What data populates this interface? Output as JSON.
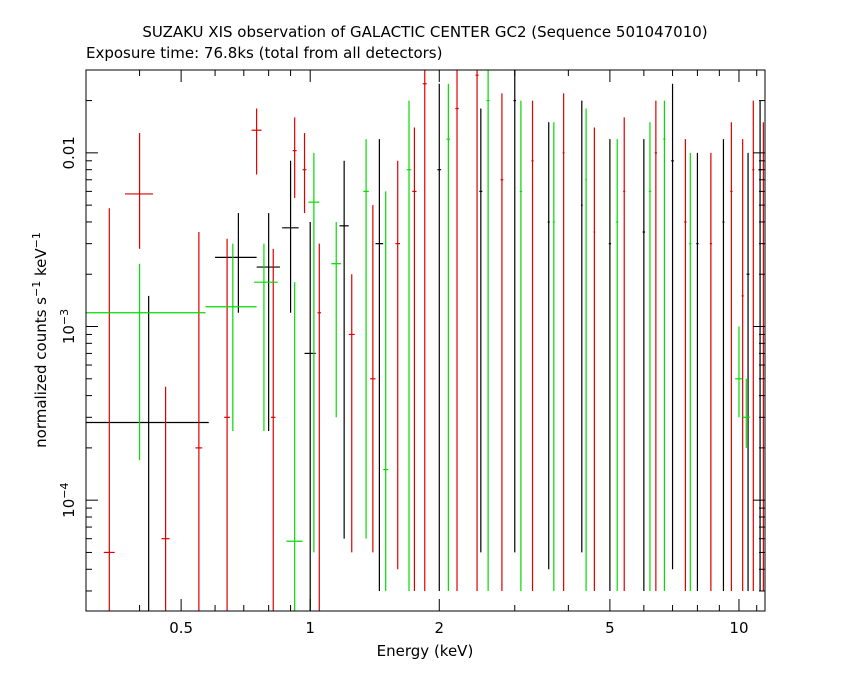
{
  "chart_data": {
    "type": "scatter",
    "title": "SUZAKU XIS observation of GALACTIC CENTER GC2 (Sequence 501047010)",
    "subtitle": "Exposure time: 76.8ks (total from all detectors)",
    "xlabel": "Energy (keV)",
    "ylabel_main": "normalized counts s",
    "ylabel_exp1": "−1",
    "ylabel_mid": " keV",
    "ylabel_exp2": "−1",
    "x_scale": "log",
    "y_scale": "log",
    "xlim": [
      0.3,
      11.5
    ],
    "ylim": [
      2.3e-05,
      0.03
    ],
    "x_ticks": [
      {
        "value": 0.5,
        "label": "0.5"
      },
      {
        "value": 1,
        "label": "1"
      },
      {
        "value": 2,
        "label": "2"
      },
      {
        "value": 5,
        "label": "5"
      },
      {
        "value": 10,
        "label": "10"
      }
    ],
    "y_ticks": [
      {
        "value": 0.0001,
        "base": "10",
        "exp": "−4"
      },
      {
        "value": 0.001,
        "base": "10",
        "exp": "−3"
      },
      {
        "value": 0.01,
        "label": "0.01"
      }
    ],
    "grid": false,
    "legend": "none",
    "series": [
      {
        "color": "#000000",
        "points": [
          {
            "x": 0.42,
            "xlo": 0.3,
            "xhi": 0.58,
            "y": 0.00028,
            "ylo": 2.3e-05,
            "yhi": 0.0015
          },
          {
            "x": 0.68,
            "xlo": 0.6,
            "xhi": 0.75,
            "y": 0.0025,
            "ylo": 0.0012,
            "yhi": 0.0045
          },
          {
            "x": 0.8,
            "xlo": 0.75,
            "xhi": 0.85,
            "y": 0.0022,
            "ylo": 0.00025,
            "yhi": 0.0045
          },
          {
            "x": 0.9,
            "xlo": 0.86,
            "xhi": 0.94,
            "y": 0.0037,
            "ylo": 0.0012,
            "yhi": 0.009
          },
          {
            "x": 1.0,
            "xlo": 0.97,
            "xhi": 1.03,
            "y": 0.0007,
            "ylo": 2.3e-05,
            "yhi": 0.004
          },
          {
            "x": 1.2,
            "xlo": 1.17,
            "xhi": 1.23,
            "y": 0.0038,
            "ylo": 6e-05,
            "yhi": 0.009
          },
          {
            "x": 1.45,
            "xlo": 1.42,
            "xhi": 1.48,
            "y": 0.003,
            "ylo": 3e-05,
            "yhi": 0.012
          },
          {
            "x": 2.0,
            "xlo": 1.98,
            "xhi": 2.02,
            "y": 0.008,
            "ylo": 3e-05,
            "yhi": 0.025
          },
          {
            "x": 2.5,
            "xlo": 2.48,
            "xhi": 2.52,
            "y": 0.006,
            "ylo": 5e-05,
            "yhi": 0.018
          },
          {
            "x": 3.0,
            "xlo": 2.98,
            "xhi": 3.02,
            "y": 0.02,
            "ylo": 5e-05,
            "yhi": 0.03
          },
          {
            "x": 3.6,
            "xlo": 3.58,
            "xhi": 3.62,
            "y": 0.004,
            "ylo": 4e-05,
            "yhi": 0.015
          },
          {
            "x": 4.3,
            "xlo": 4.28,
            "xhi": 4.32,
            "y": 0.005,
            "ylo": 5e-05,
            "yhi": 0.02
          },
          {
            "x": 5.0,
            "xlo": 4.97,
            "xhi": 5.03,
            "y": 0.003,
            "ylo": 3e-05,
            "yhi": 0.012
          },
          {
            "x": 6.0,
            "xlo": 5.96,
            "xhi": 6.04,
            "y": 0.0035,
            "ylo": 3e-05,
            "yhi": 0.012
          },
          {
            "x": 7.0,
            "xlo": 6.95,
            "xhi": 7.05,
            "y": 0.009,
            "ylo": 4e-05,
            "yhi": 0.025
          },
          {
            "x": 8.0,
            "xlo": 7.95,
            "xhi": 8.05,
            "y": 0.003,
            "ylo": 3e-05,
            "yhi": 0.01
          },
          {
            "x": 9.2,
            "xlo": 9.15,
            "xhi": 9.25,
            "y": 0.004,
            "ylo": 3e-05,
            "yhi": 0.012
          },
          {
            "x": 10.5,
            "xlo": 10.42,
            "xhi": 10.58,
            "y": 0.002,
            "ylo": 3e-05,
            "yhi": 0.01
          },
          {
            "x": 11.2,
            "xlo": 11.1,
            "xhi": 11.3,
            "y": 0.008,
            "ylo": 3e-05,
            "yhi": 0.02
          }
        ]
      },
      {
        "color": "#dd0000",
        "points": [
          {
            "x": 0.34,
            "xlo": 0.33,
            "xhi": 0.35,
            "y": 5e-05,
            "ylo": 2.3e-05,
            "yhi": 0.0048
          },
          {
            "x": 0.4,
            "xlo": 0.37,
            "xhi": 0.43,
            "y": 0.0058,
            "ylo": 0.0028,
            "yhi": 0.013
          },
          {
            "x": 0.46,
            "xlo": 0.45,
            "xhi": 0.47,
            "y": 6e-05,
            "ylo": 2.3e-05,
            "yhi": 0.00045
          },
          {
            "x": 0.55,
            "xlo": 0.54,
            "xhi": 0.56,
            "y": 0.0002,
            "ylo": 2.3e-05,
            "yhi": 0.0035
          },
          {
            "x": 0.64,
            "xlo": 0.63,
            "xhi": 0.65,
            "y": 0.0003,
            "ylo": 2.3e-05,
            "yhi": 0.0032
          },
          {
            "x": 0.75,
            "xlo": 0.73,
            "xhi": 0.77,
            "y": 0.0135,
            "ylo": 0.0075,
            "yhi": 0.018
          },
          {
            "x": 0.82,
            "xlo": 0.81,
            "xhi": 0.83,
            "y": 0.0003,
            "ylo": 2.3e-05,
            "yhi": 0.0028
          },
          {
            "x": 0.92,
            "xlo": 0.91,
            "xhi": 0.93,
            "y": 0.0103,
            "ylo": 0.0055,
            "yhi": 0.016
          },
          {
            "x": 0.97,
            "xlo": 0.96,
            "xhi": 0.98,
            "y": 0.008,
            "ylo": 0.0045,
            "yhi": 0.013
          },
          {
            "x": 1.05,
            "xlo": 1.04,
            "xhi": 1.06,
            "y": 0.0012,
            "ylo": 2.3e-05,
            "yhi": 0.003
          },
          {
            "x": 1.25,
            "xlo": 1.23,
            "xhi": 1.27,
            "y": 0.0009,
            "ylo": 5e-05,
            "yhi": 0.002
          },
          {
            "x": 1.4,
            "xlo": 1.38,
            "xhi": 1.42,
            "y": 0.0005,
            "ylo": 5e-05,
            "yhi": 0.005
          },
          {
            "x": 1.6,
            "xlo": 1.58,
            "xhi": 1.62,
            "y": 0.003,
            "ylo": 4e-05,
            "yhi": 0.009
          },
          {
            "x": 1.75,
            "xlo": 1.73,
            "xhi": 1.77,
            "y": 0.006,
            "ylo": 3e-05,
            "yhi": 0.014
          },
          {
            "x": 1.85,
            "xlo": 1.83,
            "xhi": 1.87,
            "y": 0.025,
            "ylo": 3e-05,
            "yhi": 0.03
          },
          {
            "x": 2.2,
            "xlo": 2.18,
            "xhi": 2.22,
            "y": 0.018,
            "ylo": 3e-05,
            "yhi": 0.03
          },
          {
            "x": 2.45,
            "xlo": 2.43,
            "xhi": 2.47,
            "y": 0.028,
            "ylo": 3e-05,
            "yhi": 0.03
          },
          {
            "x": 2.8,
            "xlo": 2.78,
            "xhi": 2.82,
            "y": 0.007,
            "ylo": 3e-05,
            "yhi": 0.022
          },
          {
            "x": 3.3,
            "xlo": 3.28,
            "xhi": 3.32,
            "y": 0.009,
            "ylo": 3e-05,
            "yhi": 0.02
          },
          {
            "x": 3.9,
            "xlo": 3.88,
            "xhi": 3.92,
            "y": 0.01,
            "ylo": 3e-05,
            "yhi": 0.022
          },
          {
            "x": 4.6,
            "xlo": 4.58,
            "xhi": 4.62,
            "y": 0.0035,
            "ylo": 3e-05,
            "yhi": 0.014
          },
          {
            "x": 5.4,
            "xlo": 5.37,
            "xhi": 5.43,
            "y": 0.006,
            "ylo": 3e-05,
            "yhi": 0.016
          },
          {
            "x": 6.4,
            "xlo": 6.36,
            "xhi": 6.44,
            "y": 0.01,
            "ylo": 3e-05,
            "yhi": 0.02
          },
          {
            "x": 7.5,
            "xlo": 7.45,
            "xhi": 7.55,
            "y": 0.004,
            "ylo": 3e-05,
            "yhi": 0.012
          },
          {
            "x": 8.6,
            "xlo": 8.55,
            "xhi": 8.65,
            "y": 0.003,
            "ylo": 3e-05,
            "yhi": 0.01
          },
          {
            "x": 9.6,
            "xlo": 9.54,
            "xhi": 9.66,
            "y": 0.006,
            "ylo": 3e-05,
            "yhi": 0.015
          },
          {
            "x": 10.2,
            "xlo": 10.14,
            "xhi": 10.26,
            "y": 0.0015,
            "ylo": 3e-05,
            "yhi": 0.012
          },
          {
            "x": 10.8,
            "xlo": 10.74,
            "xhi": 10.86,
            "y": 0.008,
            "ylo": 3e-05,
            "yhi": 0.02
          },
          {
            "x": 11.4,
            "xlo": 11.34,
            "xhi": 11.46,
            "y": 0.003,
            "ylo": 3e-05,
            "yhi": 0.015
          }
        ]
      },
      {
        "color": "#00dd00",
        "points": [
          {
            "x": 0.4,
            "xlo": 0.3,
            "xhi": 0.57,
            "y": 0.0012,
            "ylo": 0.00017,
            "yhi": 0.0023
          },
          {
            "x": 0.66,
            "xlo": 0.57,
            "xhi": 0.75,
            "y": 0.0013,
            "ylo": 0.00025,
            "yhi": 0.003
          },
          {
            "x": 0.78,
            "xlo": 0.74,
            "xhi": 0.84,
            "y": 0.0018,
            "ylo": 0.00025,
            "yhi": 0.003
          },
          {
            "x": 0.92,
            "xlo": 0.88,
            "xhi": 0.96,
            "y": 5.8e-05,
            "ylo": 2.3e-05,
            "yhi": 0.0018
          },
          {
            "x": 1.02,
            "xlo": 0.99,
            "xhi": 1.05,
            "y": 0.0052,
            "ylo": 5e-05,
            "yhi": 0.01
          },
          {
            "x": 1.15,
            "xlo": 1.12,
            "xhi": 1.18,
            "y": 0.0023,
            "ylo": 0.0003,
            "yhi": 0.004
          },
          {
            "x": 1.35,
            "xlo": 1.33,
            "xhi": 1.37,
            "y": 0.006,
            "ylo": 6e-05,
            "yhi": 0.012
          },
          {
            "x": 1.5,
            "xlo": 1.48,
            "xhi": 1.52,
            "y": 0.00015,
            "ylo": 3e-05,
            "yhi": 0.006
          },
          {
            "x": 1.7,
            "xlo": 1.68,
            "xhi": 1.72,
            "y": 0.008,
            "ylo": 3e-05,
            "yhi": 0.02
          },
          {
            "x": 2.1,
            "xlo": 2.08,
            "xhi": 2.12,
            "y": 0.012,
            "ylo": 3e-05,
            "yhi": 0.025
          },
          {
            "x": 2.6,
            "xlo": 2.58,
            "xhi": 2.62,
            "y": 0.02,
            "ylo": 3e-05,
            "yhi": 0.03
          },
          {
            "x": 3.1,
            "xlo": 3.08,
            "xhi": 3.12,
            "y": 0.006,
            "ylo": 3e-05,
            "yhi": 0.02
          },
          {
            "x": 3.7,
            "xlo": 3.68,
            "xhi": 3.72,
            "y": 0.004,
            "ylo": 3e-05,
            "yhi": 0.015
          },
          {
            "x": 4.4,
            "xlo": 4.38,
            "xhi": 4.42,
            "y": 0.007,
            "ylo": 3e-05,
            "yhi": 0.018
          },
          {
            "x": 5.2,
            "xlo": 5.17,
            "xhi": 5.23,
            "y": 0.004,
            "ylo": 3e-05,
            "yhi": 0.012
          },
          {
            "x": 6.2,
            "xlo": 6.16,
            "xhi": 6.24,
            "y": 0.006,
            "ylo": 3e-05,
            "yhi": 0.015
          },
          {
            "x": 6.7,
            "xlo": 6.66,
            "xhi": 6.74,
            "y": 0.012,
            "ylo": 3e-05,
            "yhi": 0.02
          },
          {
            "x": 7.7,
            "xlo": 7.65,
            "xhi": 7.75,
            "y": 0.003,
            "ylo": 3e-05,
            "yhi": 0.01
          },
          {
            "x": 10.0,
            "xlo": 9.8,
            "xhi": 10.2,
            "y": 0.0005,
            "ylo": 0.0003,
            "yhi": 0.001
          },
          {
            "x": 10.4,
            "xlo": 10.2,
            "xhi": 10.6,
            "y": 0.0003,
            "ylo": 0.0002,
            "yhi": 0.0005
          }
        ]
      }
    ]
  }
}
